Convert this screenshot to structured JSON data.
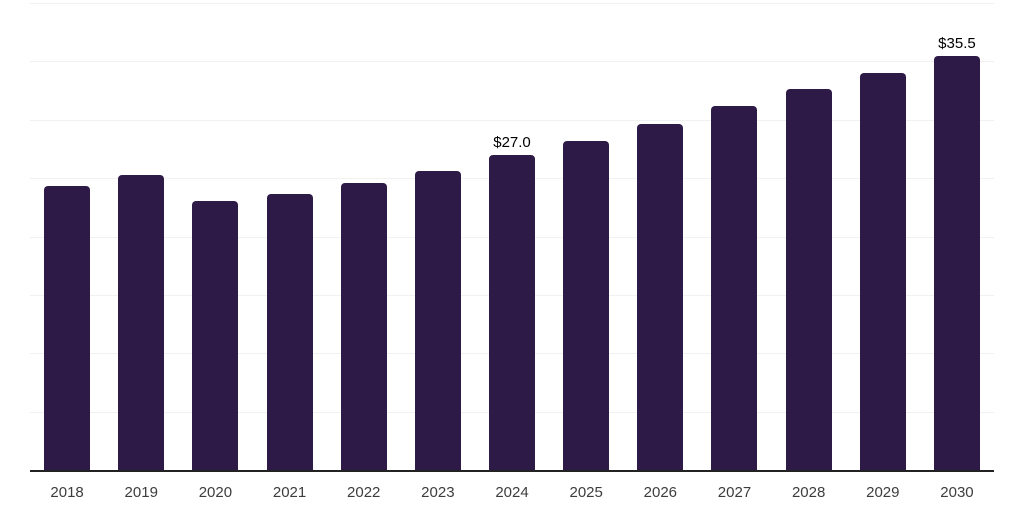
{
  "chart_data": {
    "type": "bar",
    "title": "",
    "xlabel": "",
    "ylabel": "",
    "categories": [
      "2018",
      "2019",
      "2020",
      "2021",
      "2022",
      "2023",
      "2024",
      "2025",
      "2026",
      "2027",
      "2028",
      "2029",
      "2030"
    ],
    "values": [
      24.3,
      25.3,
      23.0,
      23.6,
      24.6,
      25.6,
      27.0,
      28.2,
      29.6,
      31.2,
      32.6,
      34.0,
      35.5
    ],
    "data_labels": [
      "",
      "",
      "",
      "",
      "",
      "",
      "$27.0",
      "",
      "",
      "",
      "",
      "",
      "$35.5"
    ],
    "ylim": [
      0,
      40
    ],
    "grid_step": 5,
    "grid": true,
    "legend": false,
    "colors": {
      "bar": "#2e1a47",
      "gridline": "#f1f1f1",
      "axis": "#222222",
      "tick_label": "#3d3d3d",
      "data_label": "#000000"
    }
  }
}
